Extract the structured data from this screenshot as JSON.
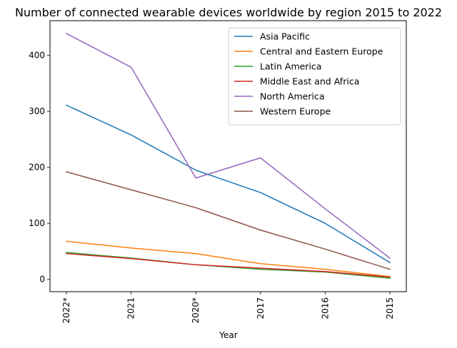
{
  "chart_data": {
    "type": "line",
    "title": "Number of connected wearable devices worldwide by region 2015 to 2022",
    "xlabel": "Year",
    "ylabel": "",
    "categories": [
      "2022*",
      "2021",
      "2020*",
      "2017",
      "2016",
      "2015"
    ],
    "ylim": [
      -22,
      462
    ],
    "yticks": [
      0,
      100,
      200,
      300,
      400
    ],
    "grid": false,
    "legend_position": "top-right",
    "series": [
      {
        "name": "Asia Pacific",
        "color": "#1f77b4",
        "values": [
          311,
          258,
          195,
          155,
          100,
          30
        ]
      },
      {
        "name": "Central and Eastern Europe",
        "color": "#ff7f0e",
        "values": [
          68,
          56,
          46,
          28,
          18,
          5
        ]
      },
      {
        "name": "Latin America",
        "color": "#2ca02c",
        "values": [
          48,
          38,
          26,
          18,
          13,
          2
        ]
      },
      {
        "name": "Middle East and Africa",
        "color": "#d62728",
        "values": [
          46,
          37,
          26,
          20,
          14,
          4
        ]
      },
      {
        "name": "North America",
        "color": "#9467bd",
        "values": [
          439,
          379,
          181,
          217,
          126,
          38
        ]
      },
      {
        "name": "Western Europe",
        "color": "#8c564b",
        "values": [
          192,
          160,
          128,
          88,
          54,
          18
        ]
      }
    ]
  }
}
